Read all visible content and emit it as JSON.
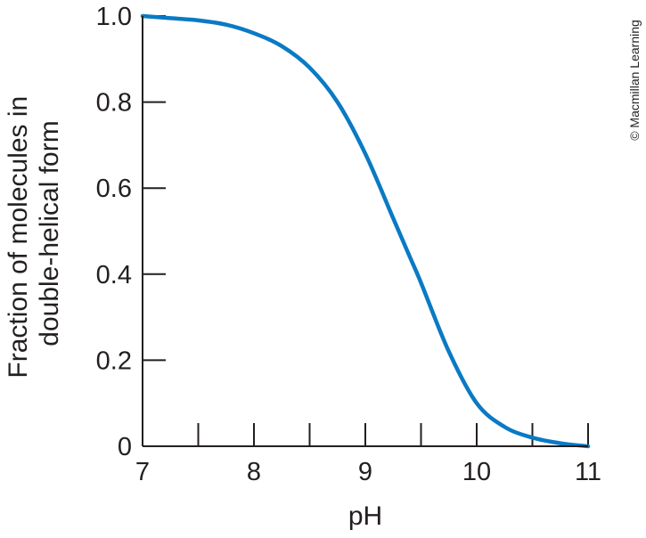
{
  "credit": "© Macmillan Learning",
  "chart_data": {
    "type": "line",
    "xlabel": "pH",
    "ylabel_lines": [
      "Fraction of molecules in",
      "double-helical form"
    ],
    "xlim": [
      7,
      11
    ],
    "ylim": [
      0,
      1.0
    ],
    "x_ticks": [
      7,
      8,
      9,
      10,
      11
    ],
    "x_minor_ticks": [
      7.5,
      8.5,
      9.5,
      10.5
    ],
    "x_tick_labels": [
      "7",
      "8",
      "9",
      "10",
      "11"
    ],
    "y_ticks": [
      0,
      0.2,
      0.4,
      0.6,
      0.8,
      1.0
    ],
    "y_tick_labels": [
      "0",
      "0.2",
      "0.4",
      "0.6",
      "0.8",
      "1.0"
    ],
    "grid": false,
    "colors": {
      "series": "#0a7ac4",
      "axis": "#231f20"
    },
    "series": [
      {
        "x": [
          7.0,
          7.25,
          7.5,
          7.75,
          8.0,
          8.25,
          8.5,
          8.75,
          9.0,
          9.25,
          9.4,
          9.5,
          9.75,
          10.0,
          10.25,
          10.5,
          10.75,
          11.0
        ],
        "y": [
          1.0,
          0.995,
          0.99,
          0.98,
          0.96,
          0.93,
          0.88,
          0.8,
          0.68,
          0.53,
          0.44,
          0.38,
          0.22,
          0.1,
          0.045,
          0.02,
          0.007,
          0.0
        ]
      }
    ]
  }
}
